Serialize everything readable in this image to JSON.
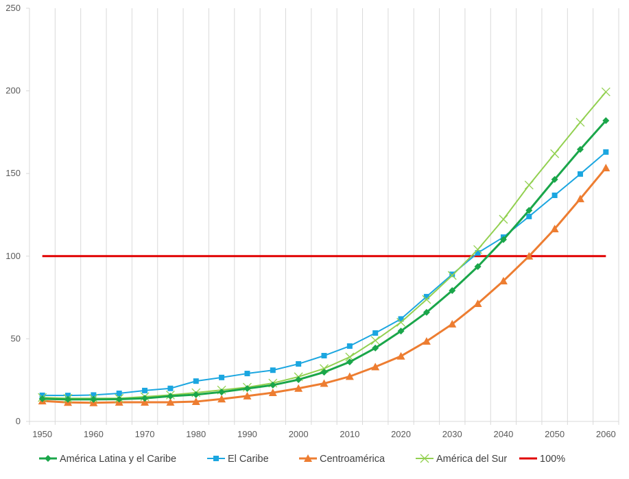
{
  "chart_data": {
    "type": "line",
    "title": "",
    "xlabel": "",
    "ylabel": "",
    "ylim": [
      0,
      250
    ],
    "yticks": [
      0,
      50,
      100,
      150,
      200,
      250
    ],
    "x": [
      1950,
      1955,
      1960,
      1965,
      1970,
      1975,
      1980,
      1985,
      1990,
      1995,
      2000,
      2005,
      2010,
      2015,
      2020,
      2025,
      2030,
      2035,
      2040,
      2045,
      2050,
      2055,
      2060
    ],
    "xtick_labels": [
      "1950",
      "1960",
      "1970",
      "1980",
      "1990",
      "2000",
      "2010",
      "2020",
      "2030",
      "2040",
      "2050",
      "2060"
    ],
    "grid": "vertical",
    "legend_position": "bottom",
    "series": [
      {
        "name": "América Latina y el Caribe",
        "color": "#1aa64a",
        "marker": "diamond",
        "values": [
          13.7,
          13.3,
          13.3,
          13.5,
          14,
          15.3,
          16.2,
          17.8,
          19.9,
          22,
          25.3,
          29.8,
          36,
          44.4,
          54.7,
          66,
          79.2,
          93.7,
          110,
          127.7,
          146.4,
          164.6,
          182
        ]
      },
      {
        "name": "El Caribe",
        "color": "#1ba6e0",
        "marker": "square",
        "values": [
          15.8,
          15.7,
          16,
          17,
          18.7,
          20,
          24.4,
          26.6,
          29,
          31,
          34.8,
          39.8,
          45.6,
          53.5,
          62,
          75.5,
          89,
          102,
          111.5,
          124,
          136.8,
          149.7,
          163
        ]
      },
      {
        "name": "Centroamérica",
        "color": "#ed7d31",
        "marker": "triangle",
        "values": [
          12.4,
          11.5,
          11.3,
          11.6,
          11.6,
          11.6,
          12,
          13.6,
          15.4,
          17.4,
          20,
          23,
          27.2,
          33,
          39.5,
          48.5,
          58.9,
          71.3,
          85,
          100,
          116.5,
          134.7,
          153.4
        ]
      },
      {
        "name": "América del Sur",
        "color": "#92d050",
        "marker": "x",
        "values": [
          14.5,
          14,
          14,
          14,
          15,
          16,
          17.4,
          19,
          20.7,
          23.2,
          27,
          32,
          39,
          49,
          60,
          73.8,
          88.3,
          104,
          122.3,
          143,
          162,
          181,
          199.4
        ]
      },
      {
        "name": "100%",
        "color": "#e00000",
        "marker": "none",
        "values": [
          100,
          100,
          100,
          100,
          100,
          100,
          100,
          100,
          100,
          100,
          100,
          100,
          100,
          100,
          100,
          100,
          100,
          100,
          100,
          100,
          100,
          100,
          100
        ]
      }
    ]
  }
}
